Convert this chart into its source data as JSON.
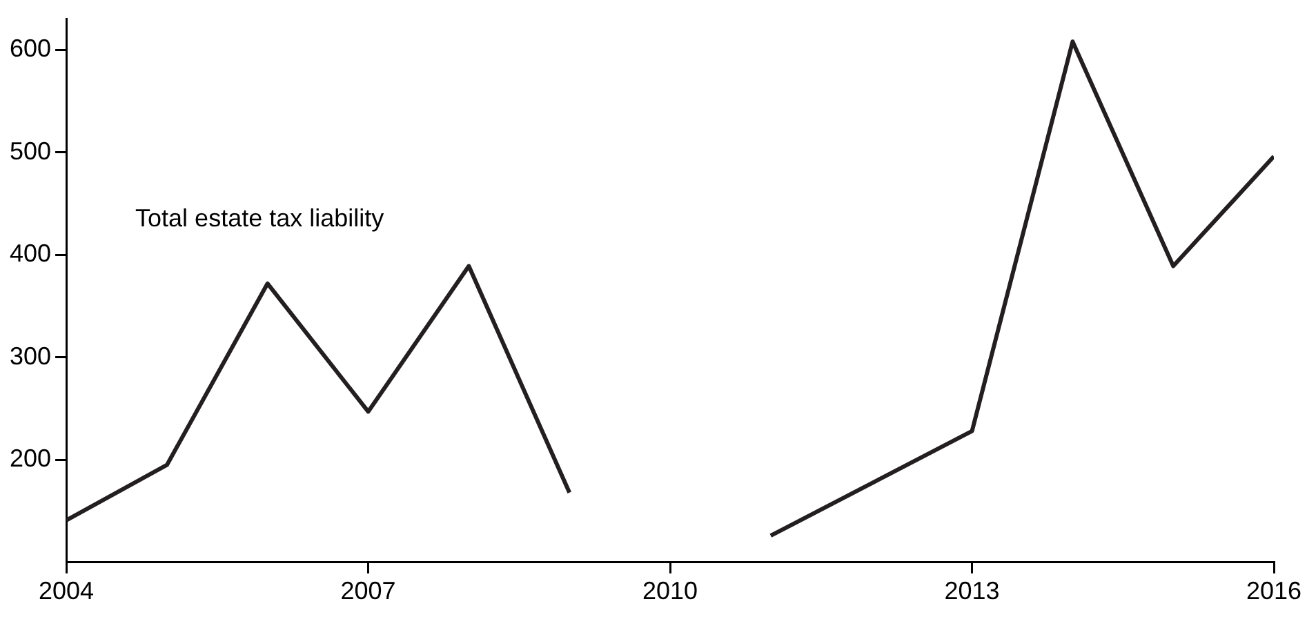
{
  "chart_data": {
    "type": "line",
    "x": [
      2004,
      2005,
      2006,
      2007,
      2008,
      2009,
      2010,
      2011,
      2013,
      2014,
      2015,
      2016
    ],
    "series": [
      {
        "name": "Total estate tax liability",
        "color": "#231f20",
        "values": [
          141,
          195,
          372,
          247,
          389,
          168,
          null,
          126,
          228,
          608,
          389,
          496
        ]
      }
    ],
    "xlim": [
      2004,
      2016
    ],
    "xticks": [
      2004,
      2007,
      2010,
      2013,
      2016
    ],
    "ylim": [
      100,
      630
    ],
    "yticks": [
      200,
      300,
      400,
      500,
      600
    ],
    "grid": false,
    "legend": false,
    "marker": "none",
    "line_style": "solid"
  }
}
